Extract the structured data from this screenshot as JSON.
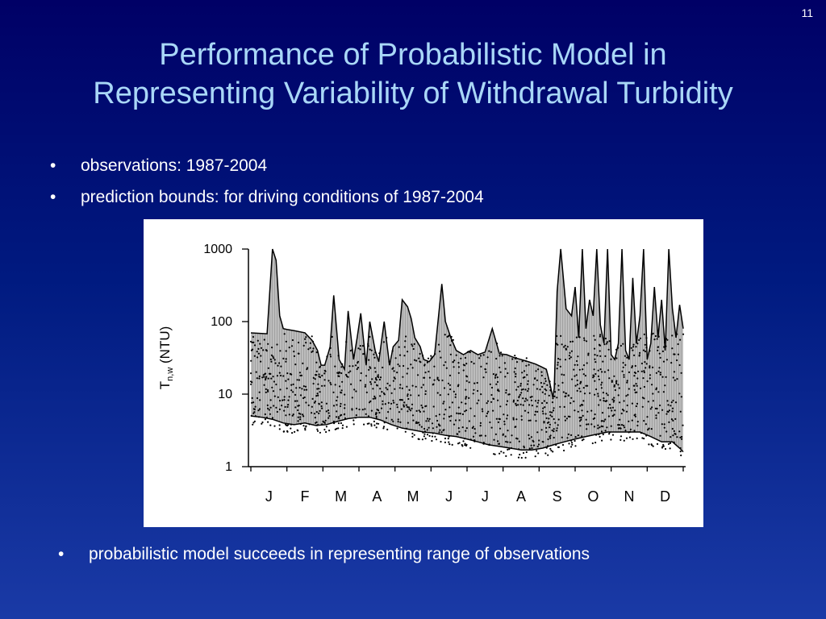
{
  "slide_number": "11",
  "title_lines": [
    "Performance of Probabilistic Model in",
    "Representing Variability of Withdrawal Turbidity"
  ],
  "bullets": [
    "observations: 1987-2004",
    "prediction bounds: for driving conditions of 1987-2004"
  ],
  "bottom_bullet": "probabilistic model succeeds in representing range of observations",
  "chart_data": {
    "type": "area",
    "scale": "log",
    "ylim": [
      1,
      1000
    ],
    "y_ticks": [
      "1000",
      "100",
      "10",
      "1"
    ],
    "y_tick_values": [
      1000,
      100,
      10,
      1
    ],
    "ylabel_main": "T",
    "ylabel_sub": "n,w",
    "ylabel_unit": "(NTU)",
    "xlabel": "",
    "x_range": [
      0,
      12
    ],
    "months": [
      "J",
      "F",
      "M",
      "A",
      "M",
      "J",
      "J",
      "A",
      "S",
      "O",
      "N",
      "D"
    ],
    "colors": {
      "band": "#bdbdbd",
      "hatch": "#9a9a9a",
      "line": "#000000",
      "points": "#000000"
    },
    "series": [
      {
        "role": "prediction-upper-bound",
        "x": [
          0,
          0.45,
          0.6,
          0.7,
          0.8,
          0.9,
          1.0,
          1.2,
          1.5,
          1.7,
          1.85,
          1.95,
          2.05,
          2.2,
          2.3,
          2.45,
          2.6,
          2.7,
          2.85,
          2.95,
          3.05,
          3.2,
          3.3,
          3.45,
          3.55,
          3.7,
          3.85,
          3.95,
          4.1,
          4.2,
          4.35,
          4.45,
          4.55,
          4.7,
          4.8,
          4.95,
          5.1,
          5.3,
          5.4,
          5.55,
          5.7,
          5.9,
          6.1,
          6.3,
          6.5,
          6.7,
          6.9,
          7.1,
          7.3,
          7.5,
          7.7,
          7.9,
          8.05,
          8.2,
          8.3,
          8.38,
          8.42,
          8.5,
          8.6,
          8.75,
          8.9,
          9.0,
          9.1,
          9.2,
          9.3,
          9.4,
          9.5,
          9.6,
          9.7,
          9.8,
          9.9,
          10.0,
          10.1,
          10.2,
          10.3,
          10.4,
          10.5,
          10.6,
          10.7,
          10.8,
          10.9,
          11.0,
          11.1,
          11.2,
          11.3,
          11.4,
          11.5,
          11.6,
          11.7,
          11.8,
          11.9,
          12.0
        ],
        "y": [
          70,
          68,
          1000,
          700,
          120,
          80,
          78,
          75,
          70,
          55,
          40,
          25,
          25,
          45,
          230,
          30,
          22,
          140,
          30,
          60,
          130,
          25,
          100,
          40,
          28,
          100,
          25,
          45,
          55,
          200,
          160,
          110,
          60,
          45,
          30,
          28,
          35,
          330,
          100,
          60,
          40,
          35,
          40,
          35,
          38,
          80,
          36,
          35,
          32,
          30,
          28,
          26,
          24,
          22,
          14,
          9,
          12,
          260,
          1000,
          150,
          120,
          300,
          60,
          1000,
          80,
          200,
          120,
          1000,
          90,
          50,
          1000,
          35,
          30,
          50,
          1000,
          40,
          30,
          400,
          50,
          120,
          1000,
          30,
          50,
          300,
          60,
          200,
          40,
          1000,
          150,
          60,
          170,
          80
        ]
      },
      {
        "role": "prediction-lower-bound",
        "x": [
          0,
          0.3,
          0.6,
          0.9,
          1.2,
          1.5,
          1.8,
          2.1,
          2.4,
          2.7,
          3.0,
          3.3,
          3.6,
          3.9,
          4.2,
          4.5,
          4.8,
          5.1,
          5.4,
          5.7,
          6.0,
          6.3,
          6.6,
          6.9,
          7.2,
          7.5,
          7.8,
          8.1,
          8.4,
          8.7,
          9.0,
          9.3,
          9.6,
          9.9,
          10.2,
          10.5,
          10.8,
          11.1,
          11.4,
          11.7,
          11.9,
          12.0
        ],
        "y": [
          5,
          4.8,
          4.5,
          4.0,
          3.8,
          4.0,
          3.7,
          3.8,
          4.2,
          4.6,
          4.8,
          4.8,
          4.4,
          3.8,
          3.4,
          3.2,
          3.0,
          2.9,
          2.7,
          2.6,
          2.4,
          2.2,
          2.0,
          1.9,
          1.8,
          1.7,
          1.7,
          1.8,
          2.0,
          2.2,
          2.4,
          2.6,
          2.8,
          3.0,
          3.0,
          3.0,
          3.0,
          2.6,
          2.2,
          2.2,
          1.8,
          1.6
        ]
      }
    ]
  }
}
